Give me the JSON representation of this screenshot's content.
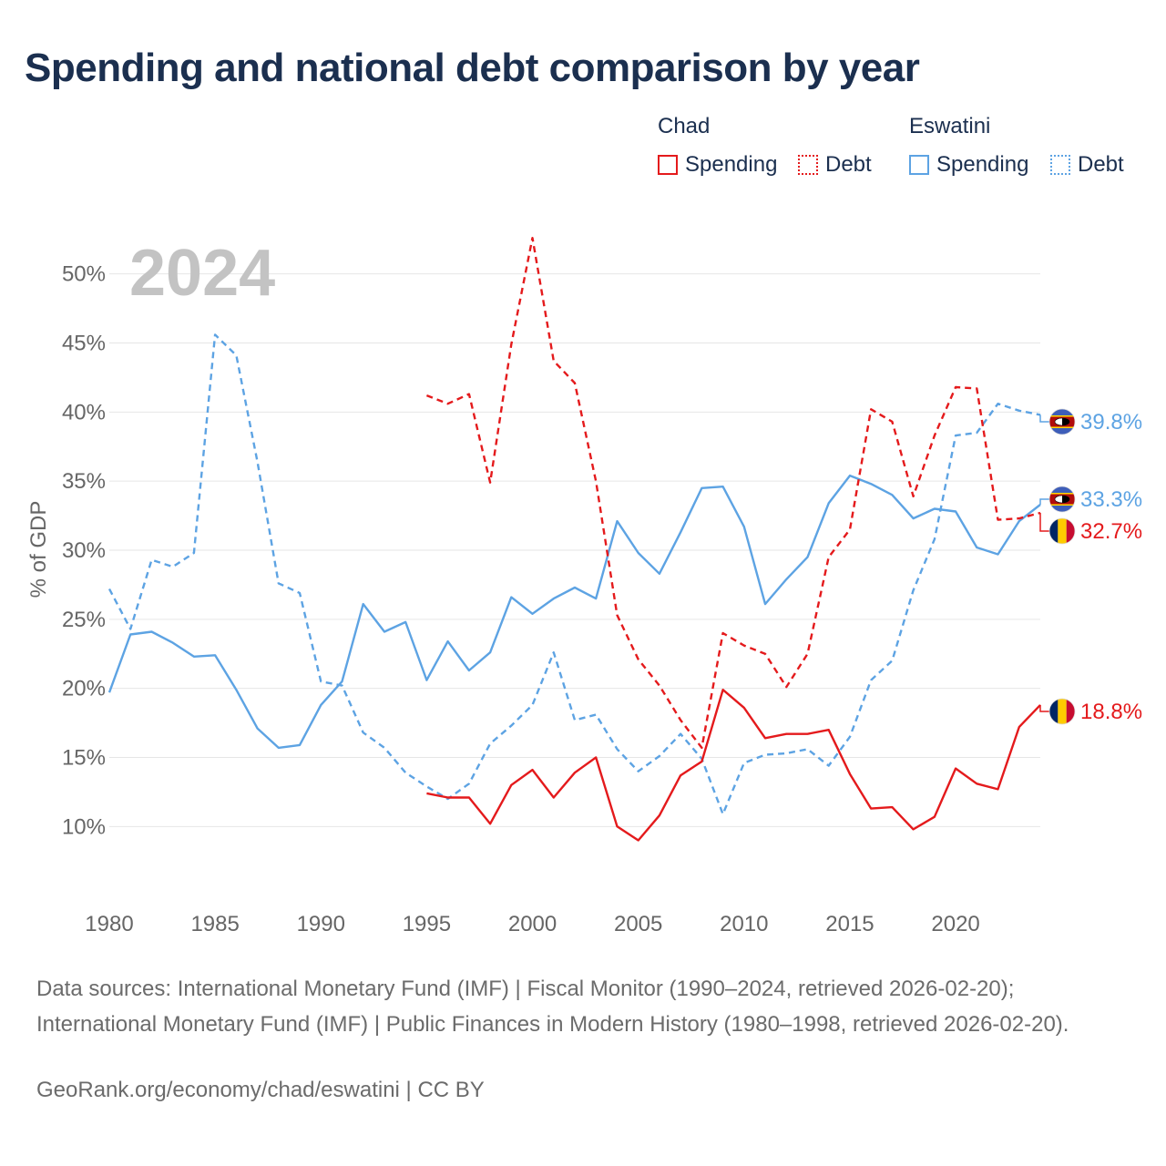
{
  "title": "Spending and national debt comparison by year",
  "legend": {
    "chad": {
      "name": "Chad",
      "spending": "Spending",
      "debt": "Debt",
      "color": "#e41a1c"
    },
    "eswatini": {
      "name": "Eswatini",
      "spending": "Spending",
      "debt": "Debt",
      "color": "#5da3e3"
    }
  },
  "source_text": "Data sources: International Monetary Fund (IMF) | Fiscal Monitor (1990–2024, retrieved 2026-02-20); International Monetary Fund (IMF) | Public Finances in Modern History (1980–1998, retrieved 2026-02-20).",
  "credit_text": "GeoRank.org/economy/chad/eswatini | CC BY",
  "chart_data": {
    "type": "line",
    "year_label": "2024",
    "ylabel": "% of GDP",
    "xlim": [
      1980,
      2024
    ],
    "ylim": [
      6,
      54
    ],
    "xticks": [
      1980,
      1985,
      1990,
      1995,
      2000,
      2005,
      2010,
      2015,
      2020
    ],
    "yticks": [
      10,
      15,
      20,
      25,
      30,
      35,
      40,
      45,
      50
    ],
    "ytick_labels": [
      "10%",
      "15%",
      "20%",
      "25%",
      "30%",
      "35%",
      "40%",
      "45%",
      "50%"
    ],
    "grid": true,
    "series": [
      {
        "name": "Eswatini Spending",
        "country": "Eswatini",
        "metric": "Spending",
        "color": "#5da3e3",
        "dashed": false,
        "end_label": "33.3%",
        "x": [
          1980,
          1981,
          1982,
          1983,
          1984,
          1985,
          1986,
          1987,
          1988,
          1989,
          1990,
          1991,
          1992,
          1993,
          1994,
          1995,
          1996,
          1997,
          1998,
          1999,
          2000,
          2001,
          2002,
          2003,
          2004,
          2005,
          2006,
          2007,
          2008,
          2009,
          2010,
          2011,
          2012,
          2013,
          2014,
          2015,
          2016,
          2017,
          2018,
          2019,
          2020,
          2021,
          2022,
          2023,
          2024
        ],
        "values": [
          19.7,
          23.9,
          24.1,
          23.3,
          22.3,
          22.4,
          19.9,
          17.1,
          15.7,
          15.9,
          18.8,
          20.5,
          26.1,
          24.1,
          24.8,
          20.6,
          23.4,
          21.3,
          22.6,
          26.6,
          25.4,
          26.5,
          27.3,
          26.5,
          32.1,
          29.8,
          28.3,
          31.3,
          34.5,
          34.6,
          31.7,
          26.1,
          27.9,
          29.5,
          33.4,
          35.4,
          34.8,
          34.0,
          32.3,
          33.0,
          32.8,
          30.2,
          29.7,
          32.1,
          33.3
        ]
      },
      {
        "name": "Eswatini Debt",
        "country": "Eswatini",
        "metric": "Debt",
        "color": "#5da3e3",
        "dashed": true,
        "end_label": "39.8%",
        "x": [
          1980,
          1981,
          1982,
          1983,
          1984,
          1985,
          1986,
          1987,
          1988,
          1989,
          1990,
          1991,
          1992,
          1993,
          1994,
          1995,
          1996,
          1997,
          1998,
          1999,
          2000,
          2001,
          2002,
          2003,
          2004,
          2005,
          2006,
          2007,
          2008,
          2009,
          2010,
          2011,
          2012,
          2013,
          2014,
          2015,
          2016,
          2017,
          2018,
          2019,
          2020,
          2021,
          2022,
          2023,
          2024
        ],
        "values": [
          27.2,
          24.3,
          29.3,
          28.8,
          29.8,
          45.6,
          44.1,
          36.4,
          27.6,
          26.9,
          20.5,
          20.2,
          16.8,
          15.7,
          13.9,
          12.9,
          12.0,
          13.1,
          16.0,
          17.3,
          18.8,
          22.6,
          17.7,
          18.1,
          15.6,
          14.0,
          15.1,
          16.7,
          14.9,
          10.9,
          14.6,
          15.2,
          15.3,
          15.6,
          14.4,
          16.5,
          20.6,
          22.0,
          27.1,
          30.8,
          38.3,
          38.5,
          40.6,
          40.1,
          39.8
        ]
      },
      {
        "name": "Chad Spending",
        "country": "Chad",
        "metric": "Spending",
        "color": "#e41a1c",
        "dashed": false,
        "end_label": "18.8%",
        "x": [
          1995,
          1996,
          1997,
          1998,
          1999,
          2000,
          2001,
          2002,
          2003,
          2004,
          2005,
          2006,
          2007,
          2008,
          2009,
          2010,
          2011,
          2012,
          2013,
          2014,
          2015,
          2016,
          2017,
          2018,
          2019,
          2020,
          2021,
          2022,
          2023,
          2024
        ],
        "values": [
          12.4,
          12.1,
          12.1,
          10.2,
          13.0,
          14.1,
          12.1,
          13.9,
          15.0,
          10.0,
          9.0,
          10.8,
          13.7,
          14.7,
          19.9,
          18.6,
          16.4,
          16.7,
          16.7,
          17.0,
          13.8,
          11.3,
          11.4,
          9.8,
          10.7,
          14.2,
          13.1,
          12.7,
          17.2,
          18.8
        ]
      },
      {
        "name": "Chad Debt",
        "country": "Chad",
        "metric": "Debt",
        "color": "#e41a1c",
        "dashed": true,
        "end_label": "32.7%",
        "x": [
          1995,
          1996,
          1997,
          1998,
          1999,
          2000,
          2001,
          2002,
          2003,
          2004,
          2005,
          2006,
          2007,
          2008,
          2009,
          2010,
          2011,
          2012,
          2013,
          2014,
          2015,
          2016,
          2017,
          2018,
          2019,
          2020,
          2021,
          2022,
          2023,
          2024
        ],
        "values": [
          41.2,
          40.6,
          41.3,
          34.9,
          44.9,
          52.6,
          43.7,
          42.1,
          35.0,
          25.3,
          22.1,
          20.2,
          17.7,
          15.7,
          24.0,
          23.1,
          22.5,
          20.1,
          22.5,
          29.5,
          31.5,
          40.2,
          39.3,
          33.9,
          38.3,
          41.8,
          41.7,
          32.2,
          32.3,
          32.7
        ]
      }
    ]
  }
}
